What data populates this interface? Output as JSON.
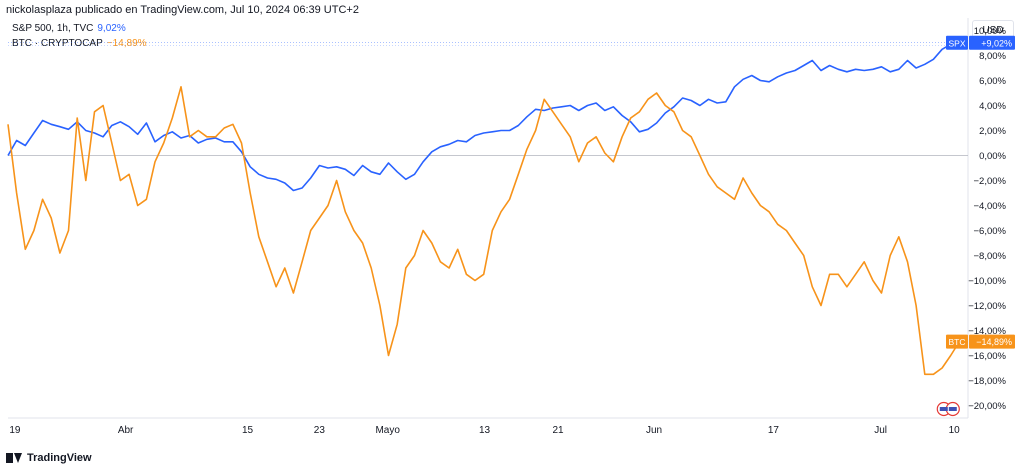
{
  "header": {
    "attribution": "nickolasplaza publicado en TradingView.com, Jul 10, 2024 06:39 UTC+2"
  },
  "legend": [
    {
      "label": "S&P 500, 1h, TVC",
      "value": "9,02%",
      "color": "#2962ff"
    },
    {
      "label": "BTC · CRYPTOCAP",
      "value": "−14,89%",
      "color": "#f7931a"
    }
  ],
  "currency": "USD",
  "footer": {
    "brand": "TradingView"
  },
  "chart_data": {
    "type": "line",
    "y_unit": "percent change",
    "ylim": [
      -21,
      11
    ],
    "yticks": [
      10,
      8,
      6,
      4,
      2,
      0,
      -2,
      -4,
      -6,
      -8,
      -10,
      -12,
      -14,
      -16,
      -18,
      -20
    ],
    "ytick_labels": [
      "10,00%",
      "8,00%",
      "6,00%",
      "4,00%",
      "2,00%",
      "0,00%",
      "−2,00%",
      "−4,00%",
      "−6,00%",
      "−8,00%",
      "−10,00%",
      "−12,00%",
      "−14,00%",
      "−16,00%",
      "−18,00%",
      "−20,00%"
    ],
    "xticks": [
      {
        "label": "19",
        "t": 0.8
      },
      {
        "label": "Abr",
        "t": 13.6
      },
      {
        "label": "15",
        "t": 27.7
      },
      {
        "label": "23",
        "t": 36.0
      },
      {
        "label": "Mayo",
        "t": 43.9
      },
      {
        "label": "13",
        "t": 55.1
      },
      {
        "label": "21",
        "t": 63.6
      },
      {
        "label": "Jun",
        "t": 74.7
      },
      {
        "label": "17",
        "t": 88.5
      },
      {
        "label": "Jul",
        "t": 100.9
      },
      {
        "label": "10",
        "t": 109.4
      }
    ],
    "xlim": [
      0,
      111
    ],
    "grid": false,
    "last_values": [
      {
        "symbol": "SPX",
        "label": "+9,02%",
        "value": 9.02,
        "color": "#2962ff"
      },
      {
        "symbol": "BTC",
        "label": "−14,89%",
        "value": -14.89,
        "color": "#f7931a"
      }
    ],
    "series": [
      {
        "name": "S&P 500, 1h, TVC",
        "color": "#2962ff",
        "x": [
          0,
          1,
          2,
          3,
          4,
          5,
          6,
          7,
          8,
          9,
          10,
          11,
          12,
          13,
          14,
          15,
          16,
          17,
          18,
          19,
          20,
          21,
          22,
          23,
          24,
          25,
          26,
          27,
          28,
          29,
          30,
          31,
          32,
          33,
          34,
          35,
          36,
          37,
          38,
          39,
          40,
          41,
          42,
          43,
          44,
          45,
          46,
          47,
          48,
          49,
          50,
          51,
          52,
          53,
          54,
          55,
          56,
          57,
          58,
          59,
          60,
          61,
          62,
          63,
          64,
          65,
          66,
          67,
          68,
          69,
          70,
          71,
          72,
          73,
          74,
          75,
          76,
          77,
          78,
          79,
          80,
          81,
          82,
          83,
          84,
          85,
          86,
          87,
          88,
          89,
          90,
          91,
          92,
          93,
          94,
          95,
          96,
          97,
          98,
          99,
          100,
          101,
          102,
          103,
          104,
          105,
          106,
          107,
          108,
          109,
          110
        ],
        "y": [
          0.0,
          1.2,
          0.8,
          1.8,
          2.8,
          2.5,
          2.3,
          2.1,
          2.7,
          2.0,
          1.8,
          1.5,
          2.4,
          2.7,
          2.3,
          1.7,
          2.6,
          1.1,
          1.6,
          1.9,
          1.4,
          1.6,
          1.0,
          1.3,
          1.4,
          1.1,
          1.1,
          0.3,
          -0.9,
          -1.5,
          -1.8,
          -1.9,
          -2.2,
          -2.8,
          -2.6,
          -1.8,
          -0.8,
          -1.0,
          -0.9,
          -1.1,
          -1.6,
          -0.8,
          -1.3,
          -1.5,
          -0.6,
          -1.3,
          -1.9,
          -1.5,
          -0.5,
          0.3,
          0.7,
          0.9,
          1.2,
          1.1,
          1.6,
          1.8,
          1.9,
          2.0,
          2.0,
          2.4,
          3.1,
          3.7,
          3.6,
          3.8,
          3.9,
          4.0,
          3.6,
          4.0,
          4.2,
          3.6,
          3.9,
          3.2,
          2.7,
          1.9,
          2.1,
          2.6,
          3.4,
          3.9,
          4.6,
          4.4,
          4.0,
          4.5,
          4.2,
          4.3,
          5.5,
          6.1,
          6.4,
          6.0,
          5.9,
          6.3,
          6.6,
          6.8,
          7.2,
          7.6,
          6.8,
          7.2,
          6.9,
          6.7,
          6.9,
          6.8,
          6.9,
          7.1,
          6.7,
          6.9,
          7.6,
          7.0,
          7.3,
          7.7,
          8.5,
          8.9,
          9.02
        ],
        "end_x": 110
      },
      {
        "name": "BTC · CRYPTOCAP",
        "color": "#f7931a",
        "x": [
          0,
          1,
          2,
          3,
          4,
          5,
          6,
          7,
          8,
          9,
          10,
          11,
          12,
          13,
          14,
          15,
          16,
          17,
          18,
          19,
          20,
          21,
          22,
          23,
          24,
          25,
          26,
          27,
          28,
          29,
          30,
          31,
          32,
          33,
          34,
          35,
          36,
          37,
          38,
          39,
          40,
          41,
          42,
          43,
          44,
          45,
          46,
          47,
          48,
          49,
          50,
          51,
          52,
          53,
          54,
          55,
          56,
          57,
          58,
          59,
          60,
          61,
          62,
          63,
          64,
          65,
          66,
          67,
          68,
          69,
          70,
          71,
          72,
          73,
          74,
          75,
          76,
          77,
          78,
          79,
          80,
          81,
          82,
          83,
          84,
          85,
          86,
          87,
          88,
          89,
          90,
          91,
          92,
          93,
          94,
          95,
          96,
          97,
          98,
          99,
          100,
          101,
          102,
          103,
          104,
          105,
          106,
          107,
          108,
          109,
          110
        ],
        "y": [
          2.5,
          -3.0,
          -7.5,
          -6.0,
          -3.5,
          -5.0,
          -7.8,
          -6.0,
          3.0,
          -2.0,
          3.5,
          4.0,
          1.0,
          -2.0,
          -1.5,
          -4.0,
          -3.5,
          -0.5,
          1.0,
          3.0,
          5.5,
          1.5,
          2.0,
          1.5,
          1.5,
          2.2,
          2.5,
          1.0,
          -3.0,
          -6.5,
          -8.5,
          -10.5,
          -9.0,
          -11.0,
          -8.5,
          -6.0,
          -5.0,
          -4.0,
          -2.0,
          -4.5,
          -6.0,
          -7.0,
          -9.0,
          -12.0,
          -16.0,
          -13.5,
          -9.0,
          -8.0,
          -6.0,
          -7.0,
          -8.5,
          -9.0,
          -7.5,
          -9.5,
          -10.0,
          -9.5,
          -6.0,
          -4.5,
          -3.5,
          -1.5,
          0.5,
          2.0,
          4.5,
          3.5,
          2.5,
          1.5,
          -0.5,
          1.0,
          1.5,
          0.2,
          -0.5,
          1.5,
          3.0,
          3.5,
          4.5,
          5.0,
          4.0,
          3.5,
          2.0,
          1.5,
          0.0,
          -1.5,
          -2.5,
          -3.0,
          -3.5,
          -1.8,
          -3.0,
          -4.0,
          -4.5,
          -5.5,
          -6.0,
          -7.0,
          -8.0,
          -10.5,
          -12.0,
          -9.5,
          -9.5,
          -10.5,
          -9.5,
          -8.5,
          -10.0,
          -11.0,
          -8.0,
          -6.5,
          -8.5,
          -12.0,
          -17.5,
          -17.5,
          -17.0,
          -16.0,
          -14.89
        ],
        "end_x": 110
      }
    ]
  }
}
